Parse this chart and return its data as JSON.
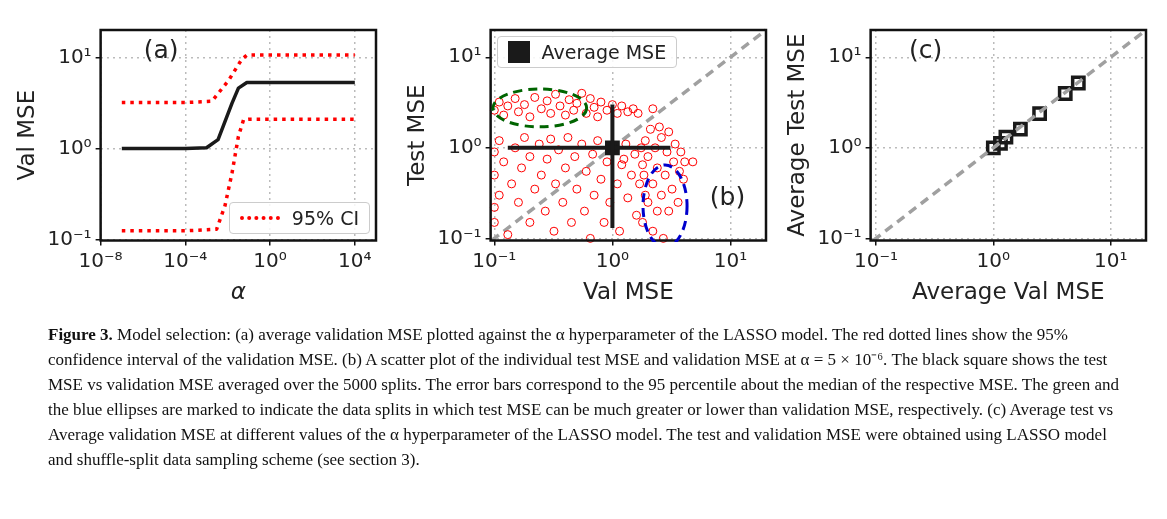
{
  "chart_data": [
    {
      "type": "line",
      "xlabel": "α",
      "ylabel": "Val MSE",
      "log": "xy",
      "grid": true,
      "legend": "bottom right",
      "marker": "none",
      "annotations": [
        "(a)"
      ],
      "xlim": [
        1e-08,
        100000.0
      ],
      "xticks": [
        {
          "value": 1e-08,
          "label": "10⁻⁸"
        },
        {
          "value": 0.0001,
          "label": "10⁻⁴"
        },
        {
          "value": 1,
          "label": "10⁰"
        },
        {
          "value": 10000.0,
          "label": "10⁴"
        }
      ],
      "ylim": [
        0.098,
        20
      ],
      "yticks": [
        {
          "value": 0.1,
          "label": "10⁻¹"
        },
        {
          "value": 1,
          "label": "10⁰"
        },
        {
          "value": 10,
          "label": "10¹"
        }
      ],
      "series": [
        {
          "color": "#1a1a1a",
          "line_style": "solid",
          "x": [
            1e-07,
            0.0001,
            0.001,
            0.0035,
            0.016,
            0.032,
            0.08,
            10000.0
          ],
          "values": [
            1.0,
            1.0,
            1.02,
            1.25,
            3.15,
            4.6,
            5.3,
            5.3
          ]
        },
        {
          "name": "95% CI",
          "color": "#ff0000",
          "line_style": "dotted",
          "x": [
            1e-07,
            0.0001,
            0.0018,
            0.011,
            0.047,
            0.08,
            10000.0
          ],
          "values": [
            3.2,
            3.2,
            3.3,
            5.6,
            9.6,
            10.6,
            10.6
          ]
        },
        {
          "color": "#ff0000",
          "line_style": "dotted",
          "x": [
            1e-07,
            0.0001,
            0.003,
            0.0074,
            0.016,
            0.032,
            0.056,
            0.1,
            10000.0
          ],
          "values": [
            0.125,
            0.125,
            0.13,
            0.235,
            0.54,
            1.36,
            2.07,
            2.1,
            2.1
          ]
        }
      ]
    },
    {
      "type": "scatter",
      "xlabel": "Val MSE",
      "ylabel": "Test MSE",
      "log": "xy",
      "grid": true,
      "legend": "top left",
      "annotations": [
        "(b)"
      ],
      "xlim": [
        0.093,
        20
      ],
      "xticks": [
        {
          "value": 0.1,
          "label": "10⁻¹"
        },
        {
          "value": 1,
          "label": "10⁰"
        },
        {
          "value": 10,
          "label": "10¹"
        }
      ],
      "ylim": [
        0.095,
        20
      ],
      "yticks": [
        {
          "value": 0.1,
          "label": "10⁻¹"
        },
        {
          "value": 1,
          "label": "10⁰"
        },
        {
          "value": 10,
          "label": "10¹"
        }
      ],
      "series": [
        {
          "color": "#ff0000",
          "marker": "circle",
          "x": [
            0.1,
            0.11,
            0.12,
            0.13,
            0.15,
            0.16,
            0.18,
            0.2,
            0.22,
            0.25,
            0.28,
            0.3,
            0.33,
            0.36,
            0.4,
            0.43,
            0.47,
            0.5,
            0.55,
            0.6,
            0.65,
            0.7,
            0.75,
            0.8,
            0.9,
            1.0,
            1.1,
            1.2,
            1.35,
            1.5,
            1.65,
            2.2
          ],
          "values": [
            2.6,
            3.2,
            2.3,
            2.9,
            3.5,
            2.5,
            3.0,
            2.2,
            3.6,
            2.7,
            3.3,
            2.4,
            3.9,
            2.9,
            2.3,
            3.4,
            2.6,
            3.1,
            4.0,
            2.4,
            3.5,
            2.8,
            2.2,
            3.2,
            2.6,
            3.0,
            2.4,
            2.9,
            2.5,
            2.7,
            2.4,
            2.7
          ]
        },
        {
          "color": "#ff0000",
          "marker": "circle",
          "x": [
            0.1,
            0.1,
            0.1,
            0.1,
            0.11,
            0.11,
            0.12,
            0.13,
            0.14,
            0.15,
            0.16,
            0.17,
            0.18,
            0.2,
            0.2,
            0.22,
            0.24,
            0.25,
            0.27,
            0.28,
            0.3,
            0.32,
            0.33,
            0.35,
            0.38,
            0.4,
            0.42,
            0.45,
            0.48,
            0.5,
            0.55,
            0.58,
            0.6,
            0.65,
            0.68,
            0.7,
            0.75,
            0.8,
            0.85,
            0.9,
            0.95,
            1.25,
            1.1,
            1.15,
            1.2,
            1.3,
            1.35,
            1.45,
            1.55,
            1.6,
            1.7,
            1.8,
            1.9,
            1.75
          ],
          "values": [
            0.15,
            0.22,
            0.5,
            0.9,
            0.3,
            1.2,
            0.7,
            0.11,
            0.4,
            1.0,
            0.25,
            0.6,
            1.3,
            0.15,
            0.8,
            0.35,
            1.1,
            0.5,
            0.2,
            0.75,
            1.25,
            0.12,
            0.4,
            0.95,
            0.25,
            0.6,
            1.3,
            0.15,
            0.8,
            0.35,
            1.1,
            0.2,
            0.55,
            0.1,
            0.85,
            0.3,
            1.2,
            0.45,
            0.15,
            0.7,
            0.25,
            0.75,
            0.4,
            0.12,
            0.65,
            1.1,
            0.28,
            0.5,
            0.85,
            0.18,
            0.4,
            0.65,
            0.3,
            1.0
          ]
        },
        {
          "color": "#ff0000",
          "marker": "circle",
          "x": [
            1.8,
            1.85,
            1.9,
            2.0,
            2.0,
            2.1,
            2.2,
            2.2,
            2.3,
            2.4,
            2.4,
            2.5,
            2.6,
            2.6,
            2.7,
            2.8,
            2.9,
            3.0,
            3.0,
            3.2,
            3.3,
            3.4,
            3.6,
            3.7,
            3.8,
            4.0,
            4.1,
            4.8
          ],
          "values": [
            0.15,
            0.5,
            1.2,
            0.25,
            0.8,
            1.6,
            0.12,
            0.4,
            1.0,
            0.2,
            0.6,
            1.7,
            0.3,
            1.3,
            0.1,
            0.5,
            0.9,
            0.2,
            1.5,
            0.35,
            0.7,
            1.1,
            0.25,
            0.55,
            0.9,
            0.45,
            0.7,
            0.7
          ]
        },
        {
          "type": "line",
          "color": "#a0a0a0",
          "line_style": "dashed",
          "marker": "none",
          "x": [
            0.095,
            20
          ],
          "values": [
            0.095,
            20
          ]
        },
        {
          "name": "Average MSE",
          "color": "#1a1a1a",
          "marker": "square",
          "x": [
            1.0
          ],
          "values": [
            1.0
          ],
          "xerrors": [
            [
              0.13,
              3.1
            ]
          ],
          "errors": [
            [
              0.13,
              3.0
            ]
          ]
        }
      ]
    },
    {
      "type": "scatter",
      "xlabel": "Average Val MSE",
      "ylabel": "Average Test MSE",
      "log": "xy",
      "grid": true,
      "annotations": [
        "(c)"
      ],
      "xlim": [
        0.09,
        20
      ],
      "xticks": [
        {
          "value": 0.1,
          "label": "10⁻¹"
        },
        {
          "value": 1,
          "label": "10⁰"
        },
        {
          "value": 10,
          "label": "10¹"
        }
      ],
      "ylim": [
        0.095,
        20
      ],
      "yticks": [
        {
          "value": 0.1,
          "label": "10⁻¹"
        },
        {
          "value": 1,
          "label": "10⁰"
        },
        {
          "value": 10,
          "label": "10¹"
        }
      ],
      "series": [
        {
          "type": "line",
          "color": "#a0a0a0",
          "line_style": "dashed",
          "marker": "none",
          "x": [
            0.095,
            20
          ],
          "values": [
            0.095,
            20
          ]
        },
        {
          "color": "#1a1a1a",
          "marker": "square",
          "x": [
            1.0,
            1.15,
            1.28,
            1.7,
            2.48,
            4.1,
            5.3
          ],
          "values": [
            1.0,
            1.12,
            1.31,
            1.61,
            2.39,
            3.98,
            5.2
          ]
        }
      ]
    },
    {
      "type": "other",
      "annotations": [
        "Figure 3.",
        "Model selection: (a) average validation MSE plotted against the α hyperparameter of the LASSO model. The red dotted lines show the 95% confidence interval of the validation MSE. (b) A scatter plot of the individual test MSE and validation MSE at α = 5 × 10⁻⁶. The black square shows the test MSE vs validation MSE averaged over the 5000 splits. The error bars correspond to the 95 percentile about the median of the respective MSE. The green and the blue ellipses are marked to indicate the data splits in which test MSE can be much greater or lower than validation MSE, respectively. (c) Average test vs Average validation MSE at different values of the α hyperparameter of the LASSO model. The test and validation MSE were obtained using LASSO model and shuffle-split data sampling scheme (see section 3)."
      ]
    }
  ]
}
